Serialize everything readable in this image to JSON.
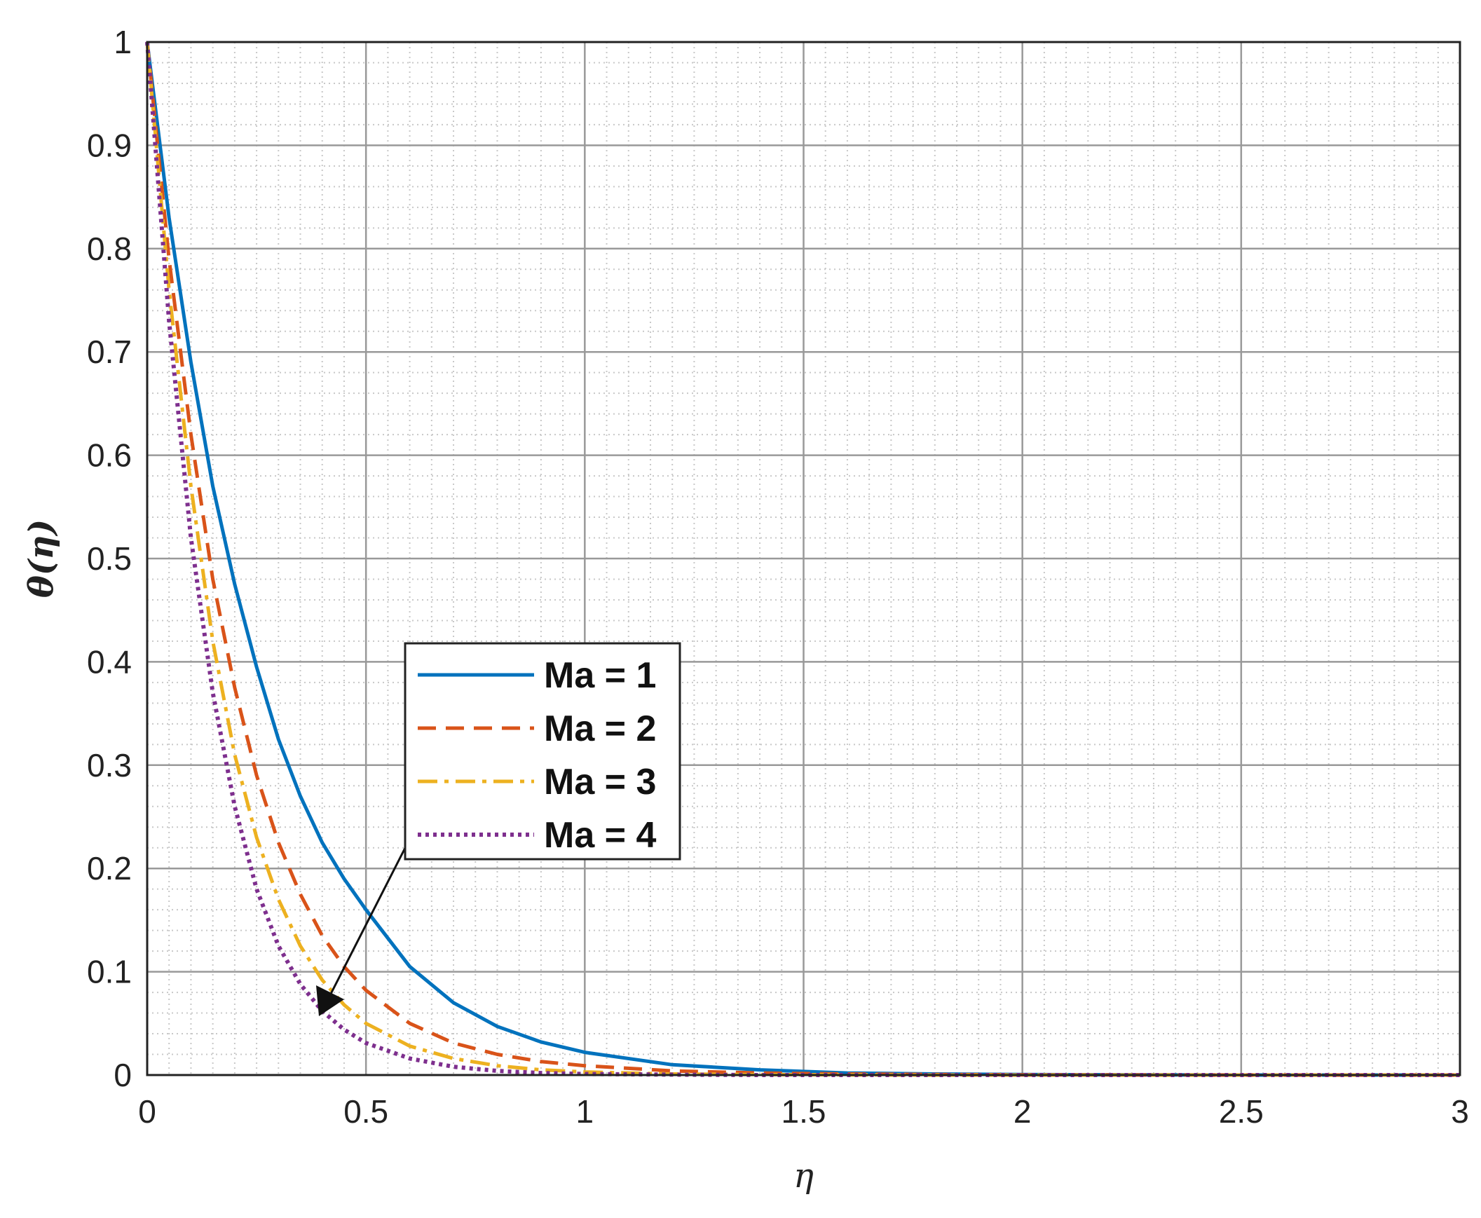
{
  "chart_data": {
    "type": "line",
    "xlabel": "η",
    "ylabel": "θ(η)",
    "xlim": [
      0,
      3
    ],
    "ylim": [
      0,
      1
    ],
    "x_ticks": [
      "0",
      "0.5",
      "1",
      "1.5",
      "2",
      "2.5",
      "3"
    ],
    "y_ticks": [
      "0",
      "0.1",
      "0.2",
      "0.3",
      "0.4",
      "0.5",
      "0.6",
      "0.7",
      "0.8",
      "0.9",
      "1"
    ],
    "grid": "major solid, minor dotted",
    "legend_position": "inside, lower-middle-left",
    "x": [
      0,
      0.05,
      0.1,
      0.15,
      0.2,
      0.25,
      0.3,
      0.35,
      0.4,
      0.45,
      0.5,
      0.6,
      0.7,
      0.8,
      0.9,
      1.0,
      1.2,
      1.4,
      1.6,
      1.8,
      2.0,
      2.5,
      3.0
    ],
    "series": [
      {
        "name": "Ma = 1",
        "color": "#0072BD",
        "style": "solid",
        "values": [
          1.0,
          0.83,
          0.69,
          0.57,
          0.475,
          0.395,
          0.325,
          0.27,
          0.225,
          0.19,
          0.16,
          0.105,
          0.07,
          0.047,
          0.032,
          0.022,
          0.01,
          0.005,
          0.002,
          0.001,
          0.0005,
          0.0,
          0.0
        ]
      },
      {
        "name": "Ma = 2",
        "color": "#D95319",
        "style": "dashed",
        "values": [
          1.0,
          0.79,
          0.62,
          0.48,
          0.375,
          0.29,
          0.225,
          0.175,
          0.135,
          0.105,
          0.082,
          0.05,
          0.031,
          0.02,
          0.013,
          0.009,
          0.004,
          0.002,
          0.001,
          0.0005,
          0.0002,
          0.0,
          0.0
        ]
      },
      {
        "name": "Ma = 3",
        "color": "#EDB120",
        "style": "dashdot",
        "values": [
          1.0,
          0.76,
          0.57,
          0.42,
          0.31,
          0.23,
          0.17,
          0.125,
          0.092,
          0.068,
          0.05,
          0.028,
          0.016,
          0.009,
          0.005,
          0.003,
          0.001,
          0.0005,
          0.0002,
          0.0,
          0.0,
          0.0,
          0.0
        ]
      },
      {
        "name": "Ma = 4",
        "color": "#7E2F8E",
        "style": "dotted",
        "values": [
          1.0,
          0.73,
          0.52,
          0.37,
          0.26,
          0.18,
          0.125,
          0.088,
          0.062,
          0.044,
          0.031,
          0.016,
          0.008,
          0.004,
          0.002,
          0.001,
          0.0004,
          0.0,
          0.0,
          0.0,
          0.0,
          0.0,
          0.0
        ]
      }
    ],
    "annotation": "arrow pointing toward decreasing θ with increasing Ma"
  }
}
